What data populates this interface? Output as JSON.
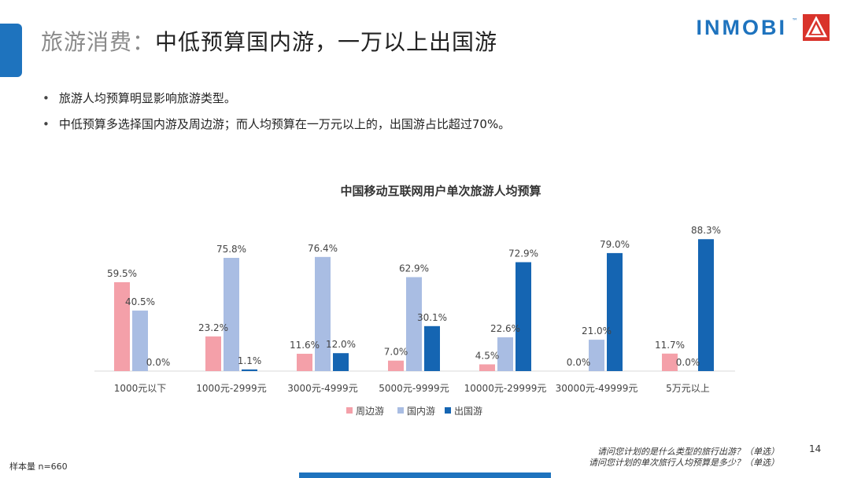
{
  "slide": {
    "title_gray": "旅游消费：",
    "title_dark": "中低预算国内游，一万以上出国游",
    "logo_text": "INMOBI",
    "bullets": [
      "旅游人均预算明显影响旅游类型。",
      "中低预算多选择国内游及周边游；而人均预算在一万元以上的，出国游占比超过70%。"
    ],
    "sample": "样本量 n=660",
    "questions": [
      "请问您计划的是什么类型的旅行出游？（单选）",
      "请问您计划的单次旅行人均预算是多少？（单选）"
    ],
    "page_number": "14"
  },
  "colors": {
    "accent": "#1e73be",
    "series": [
      "#f4a0a9",
      "#a9bde3",
      "#1565b2"
    ]
  },
  "chart_data": {
    "type": "bar",
    "title": "中国移动互联网用户单次旅游人均预算",
    "categories": [
      "1000元以下",
      "1000元-2999元",
      "3000元-4999元",
      "5000元-9999元",
      "10000元-29999元",
      "30000元-49999元",
      "5万元以上"
    ],
    "series": [
      {
        "name": "周边游",
        "values": [
          59.5,
          23.2,
          11.6,
          7.0,
          4.5,
          0.0,
          11.7
        ]
      },
      {
        "name": "国内游",
        "values": [
          40.5,
          75.8,
          76.4,
          62.9,
          22.6,
          21.0,
          0.0
        ]
      },
      {
        "name": "出国游",
        "values": [
          0.0,
          1.1,
          12.0,
          30.1,
          72.9,
          79.0,
          88.3
        ]
      }
    ],
    "value_suffix": "%",
    "ylim": [
      0,
      100
    ],
    "grid": false,
    "legend": "bottom"
  }
}
